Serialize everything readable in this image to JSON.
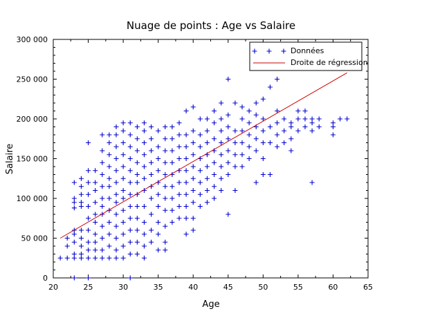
{
  "chart_data": {
    "type": "scatter",
    "title": "Nuage de points : Age vs Salaire",
    "xlabel": "Age",
    "ylabel": "Salaire",
    "xlim": [
      20,
      65
    ],
    "ylim": [
      0,
      300000
    ],
    "x_ticks": [
      20,
      25,
      30,
      35,
      40,
      45,
      50,
      55,
      60,
      65
    ],
    "x_tick_labels": [
      "20",
      "25",
      "30",
      "35",
      "40",
      "45",
      "50",
      "55",
      "60",
      "65"
    ],
    "y_ticks": [
      0,
      50000,
      100000,
      150000,
      200000,
      250000,
      300000
    ],
    "y_tick_labels": [
      "0",
      "50 000",
      "100 000",
      "150 000",
      "200 000",
      "250 000",
      "300 000"
    ],
    "grid": false,
    "legend_position": "top-right",
    "series": [
      {
        "name": "Données",
        "marker": "plus",
        "color": "#0000cc",
        "points": [
          [
            21,
            25000
          ],
          [
            22,
            25000
          ],
          [
            22,
            40000
          ],
          [
            22,
            50000
          ],
          [
            23,
            0
          ],
          [
            23,
            25000
          ],
          [
            23,
            30000
          ],
          [
            23,
            45000
          ],
          [
            23,
            55000
          ],
          [
            23,
            60000
          ],
          [
            23,
            88000
          ],
          [
            23,
            95000
          ],
          [
            23,
            100000
          ],
          [
            23,
            120000
          ],
          [
            24,
            25000
          ],
          [
            24,
            30000
          ],
          [
            24,
            40000
          ],
          [
            24,
            50000
          ],
          [
            24,
            60000
          ],
          [
            24,
            90000
          ],
          [
            24,
            95000
          ],
          [
            24,
            105000
          ],
          [
            24,
            115000
          ],
          [
            24,
            125000
          ],
          [
            25,
            0
          ],
          [
            25,
            25000
          ],
          [
            25,
            35000
          ],
          [
            25,
            45000
          ],
          [
            25,
            60000
          ],
          [
            25,
            75000
          ],
          [
            25,
            90000
          ],
          [
            25,
            105000
          ],
          [
            25,
            120000
          ],
          [
            25,
            135000
          ],
          [
            25,
            170000
          ],
          [
            26,
            25000
          ],
          [
            26,
            35000
          ],
          [
            26,
            45000
          ],
          [
            26,
            55000
          ],
          [
            26,
            70000
          ],
          [
            26,
            80000
          ],
          [
            26,
            95000
          ],
          [
            26,
            110000
          ],
          [
            26,
            120000
          ],
          [
            26,
            135000
          ],
          [
            27,
            25000
          ],
          [
            27,
            35000
          ],
          [
            27,
            50000
          ],
          [
            27,
            65000
          ],
          [
            27,
            80000
          ],
          [
            27,
            90000
          ],
          [
            27,
            100000
          ],
          [
            27,
            115000
          ],
          [
            27,
            130000
          ],
          [
            27,
            145000
          ],
          [
            27,
            160000
          ],
          [
            27,
            180000
          ],
          [
            28,
            25000
          ],
          [
            28,
            40000
          ],
          [
            28,
            55000
          ],
          [
            28,
            70000
          ],
          [
            28,
            85000
          ],
          [
            28,
            100000
          ],
          [
            28,
            115000
          ],
          [
            28,
            125000
          ],
          [
            28,
            140000
          ],
          [
            28,
            155000
          ],
          [
            28,
            170000
          ],
          [
            28,
            180000
          ],
          [
            29,
            25000
          ],
          [
            29,
            35000
          ],
          [
            29,
            50000
          ],
          [
            29,
            65000
          ],
          [
            29,
            80000
          ],
          [
            29,
            95000
          ],
          [
            29,
            105000
          ],
          [
            29,
            120000
          ],
          [
            29,
            135000
          ],
          [
            29,
            150000
          ],
          [
            29,
            165000
          ],
          [
            29,
            180000
          ],
          [
            29,
            190000
          ],
          [
            30,
            25000
          ],
          [
            30,
            40000
          ],
          [
            30,
            55000
          ],
          [
            30,
            70000
          ],
          [
            30,
            85000
          ],
          [
            30,
            100000
          ],
          [
            30,
            110000
          ],
          [
            30,
            125000
          ],
          [
            30,
            140000
          ],
          [
            30,
            155000
          ],
          [
            30,
            170000
          ],
          [
            30,
            185000
          ],
          [
            30,
            195000
          ],
          [
            31,
            0
          ],
          [
            31,
            30000
          ],
          [
            31,
            45000
          ],
          [
            31,
            60000
          ],
          [
            31,
            75000
          ],
          [
            31,
            90000
          ],
          [
            31,
            105000
          ],
          [
            31,
            120000
          ],
          [
            31,
            135000
          ],
          [
            31,
            150000
          ],
          [
            31,
            165000
          ],
          [
            31,
            180000
          ],
          [
            31,
            195000
          ],
          [
            32,
            30000
          ],
          [
            32,
            45000
          ],
          [
            32,
            60000
          ],
          [
            32,
            75000
          ],
          [
            32,
            90000
          ],
          [
            32,
            105000
          ],
          [
            32,
            120000
          ],
          [
            32,
            130000
          ],
          [
            32,
            145000
          ],
          [
            32,
            160000
          ],
          [
            32,
            175000
          ],
          [
            32,
            190000
          ],
          [
            33,
            25000
          ],
          [
            33,
            40000
          ],
          [
            33,
            55000
          ],
          [
            33,
            70000
          ],
          [
            33,
            90000
          ],
          [
            33,
            110000
          ],
          [
            33,
            125000
          ],
          [
            33,
            140000
          ],
          [
            33,
            155000
          ],
          [
            33,
            170000
          ],
          [
            33,
            185000
          ],
          [
            33,
            195000
          ],
          [
            34,
            45000
          ],
          [
            34,
            60000
          ],
          [
            34,
            80000
          ],
          [
            34,
            100000
          ],
          [
            34,
            115000
          ],
          [
            34,
            130000
          ],
          [
            34,
            145000
          ],
          [
            34,
            160000
          ],
          [
            34,
            175000
          ],
          [
            34,
            190000
          ],
          [
            35,
            35000
          ],
          [
            35,
            55000
          ],
          [
            35,
            70000
          ],
          [
            35,
            90000
          ],
          [
            35,
            105000
          ],
          [
            35,
            120000
          ],
          [
            35,
            135000
          ],
          [
            35,
            150000
          ],
          [
            35,
            165000
          ],
          [
            35,
            185000
          ],
          [
            36,
            35000
          ],
          [
            36,
            45000
          ],
          [
            36,
            65000
          ],
          [
            36,
            85000
          ],
          [
            36,
            100000
          ],
          [
            36,
            115000
          ],
          [
            36,
            130000
          ],
          [
            36,
            145000
          ],
          [
            36,
            160000
          ],
          [
            36,
            175000
          ],
          [
            36,
            190000
          ],
          [
            37,
            70000
          ],
          [
            37,
            85000
          ],
          [
            37,
            100000
          ],
          [
            37,
            115000
          ],
          [
            37,
            130000
          ],
          [
            37,
            145000
          ],
          [
            37,
            160000
          ],
          [
            37,
            175000
          ],
          [
            37,
            190000
          ],
          [
            38,
            75000
          ],
          [
            38,
            90000
          ],
          [
            38,
            105000
          ],
          [
            38,
            120000
          ],
          [
            38,
            135000
          ],
          [
            38,
            150000
          ],
          [
            38,
            165000
          ],
          [
            38,
            180000
          ],
          [
            38,
            195000
          ],
          [
            39,
            55000
          ],
          [
            39,
            75000
          ],
          [
            39,
            90000
          ],
          [
            39,
            105000
          ],
          [
            39,
            120000
          ],
          [
            39,
            135000
          ],
          [
            39,
            150000
          ],
          [
            39,
            165000
          ],
          [
            39,
            180000
          ],
          [
            39,
            210000
          ],
          [
            40,
            60000
          ],
          [
            40,
            75000
          ],
          [
            40,
            95000
          ],
          [
            40,
            110000
          ],
          [
            40,
            125000
          ],
          [
            40,
            140000
          ],
          [
            40,
            155000
          ],
          [
            40,
            170000
          ],
          [
            40,
            185000
          ],
          [
            40,
            215000
          ],
          [
            41,
            90000
          ],
          [
            41,
            105000
          ],
          [
            41,
            120000
          ],
          [
            41,
            135000
          ],
          [
            41,
            150000
          ],
          [
            41,
            165000
          ],
          [
            41,
            180000
          ],
          [
            41,
            200000
          ],
          [
            42,
            95000
          ],
          [
            42,
            110000
          ],
          [
            42,
            125000
          ],
          [
            42,
            140000
          ],
          [
            42,
            155000
          ],
          [
            42,
            170000
          ],
          [
            42,
            185000
          ],
          [
            42,
            200000
          ],
          [
            43,
            100000
          ],
          [
            43,
            115000
          ],
          [
            43,
            130000
          ],
          [
            43,
            145000
          ],
          [
            43,
            160000
          ],
          [
            43,
            175000
          ],
          [
            43,
            195000
          ],
          [
            43,
            210000
          ],
          [
            44,
            110000
          ],
          [
            44,
            125000
          ],
          [
            44,
            140000
          ],
          [
            44,
            155000
          ],
          [
            44,
            170000
          ],
          [
            44,
            185000
          ],
          [
            44,
            200000
          ],
          [
            44,
            220000
          ],
          [
            45,
            80000
          ],
          [
            45,
            130000
          ],
          [
            45,
            145000
          ],
          [
            45,
            160000
          ],
          [
            45,
            175000
          ],
          [
            45,
            190000
          ],
          [
            45,
            205000
          ],
          [
            45,
            250000
          ],
          [
            46,
            110000
          ],
          [
            46,
            140000
          ],
          [
            46,
            155000
          ],
          [
            46,
            170000
          ],
          [
            46,
            185000
          ],
          [
            46,
            220000
          ],
          [
            47,
            140000
          ],
          [
            47,
            155000
          ],
          [
            47,
            170000
          ],
          [
            47,
            185000
          ],
          [
            47,
            200000
          ],
          [
            47,
            215000
          ],
          [
            48,
            150000
          ],
          [
            48,
            165000
          ],
          [
            48,
            180000
          ],
          [
            48,
            195000
          ],
          [
            48,
            210000
          ],
          [
            49,
            120000
          ],
          [
            49,
            160000
          ],
          [
            49,
            175000
          ],
          [
            49,
            190000
          ],
          [
            49,
            205000
          ],
          [
            49,
            220000
          ],
          [
            50,
            130000
          ],
          [
            50,
            150000
          ],
          [
            50,
            170000
          ],
          [
            50,
            185000
          ],
          [
            50,
            200000
          ],
          [
            50,
            225000
          ],
          [
            51,
            130000
          ],
          [
            51,
            170000
          ],
          [
            51,
            190000
          ],
          [
            51,
            240000
          ],
          [
            52,
            165000
          ],
          [
            52,
            180000
          ],
          [
            52,
            195000
          ],
          [
            52,
            210000
          ],
          [
            52,
            250000
          ],
          [
            53,
            170000
          ],
          [
            53,
            185000
          ],
          [
            53,
            200000
          ],
          [
            54,
            160000
          ],
          [
            54,
            175000
          ],
          [
            54,
            190000
          ],
          [
            54,
            195000
          ],
          [
            55,
            185000
          ],
          [
            55,
            200000
          ],
          [
            55,
            210000
          ],
          [
            56,
            190000
          ],
          [
            56,
            200000
          ],
          [
            56,
            210000
          ],
          [
            57,
            120000
          ],
          [
            57,
            185000
          ],
          [
            57,
            195000
          ],
          [
            57,
            200000
          ],
          [
            58,
            190000
          ],
          [
            58,
            200000
          ],
          [
            60,
            180000
          ],
          [
            60,
            190000
          ],
          [
            60,
            195000
          ],
          [
            61,
            200000
          ],
          [
            62,
            200000
          ]
        ]
      },
      {
        "name": "Droite de régression",
        "type": "line",
        "color": "#cc0000",
        "points": [
          [
            21,
            50000
          ],
          [
            62,
            258000
          ]
        ]
      }
    ]
  }
}
